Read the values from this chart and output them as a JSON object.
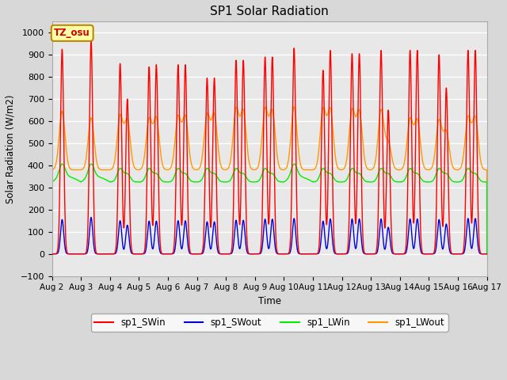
{
  "title": "SP1 Solar Radiation",
  "ylabel": "Solar Radiation (W/m2)",
  "xlabel": "Time",
  "ylim": [
    -100,
    1050
  ],
  "yticks": [
    -100,
    0,
    100,
    200,
    300,
    400,
    500,
    600,
    700,
    800,
    900,
    1000
  ],
  "xtick_labels": [
    "Aug 2",
    "Aug 3",
    "Aug 4",
    "Aug 5",
    "Aug 6",
    "Aug 7",
    "Aug 8",
    "Aug 9",
    "Aug 10",
    "Aug 11",
    "Aug 12",
    "Aug 13",
    "Aug 14",
    "Aug 15",
    "Aug 16",
    "Aug 17"
  ],
  "colors": {
    "sp1_SWin": "#ff0000",
    "sp1_SWout": "#0000dd",
    "sp1_LWin": "#00ee00",
    "sp1_LWout": "#ff9900"
  },
  "annotation_text": "TZ_osu",
  "annotation_color": "#cc0000",
  "annotation_bg": "#ffffaa",
  "annotation_border": "#bb8800",
  "background_color": "#e8e8e8",
  "grid_color": "#ffffff",
  "n_days": 15,
  "SWin_peak1": [
    925,
    965,
    860,
    845,
    855,
    795,
    875,
    890,
    930,
    830,
    905,
    920,
    920,
    900,
    920
  ],
  "SWin_peak2": [
    0,
    0,
    700,
    855,
    855,
    795,
    875,
    890,
    0,
    920,
    905,
    650,
    920,
    750,
    920
  ],
  "SWout_peak1": [
    155,
    165,
    150,
    148,
    150,
    145,
    152,
    157,
    160,
    148,
    158,
    158,
    158,
    155,
    160
  ],
  "SWout_peak2": [
    0,
    0,
    130,
    148,
    150,
    145,
    152,
    157,
    0,
    158,
    158,
    120,
    158,
    135,
    160
  ],
  "LWin_base": 325,
  "LWin_amp": 60,
  "LWout_base": 380,
  "LWout_peak1": [
    645,
    615,
    620,
    605,
    615,
    625,
    650,
    650,
    665,
    648,
    645,
    648,
    605,
    600,
    612
  ],
  "LWout_peak2": [
    0,
    0,
    600,
    610,
    615,
    625,
    640,
    640,
    0,
    648,
    640,
    500,
    600,
    550,
    612
  ]
}
